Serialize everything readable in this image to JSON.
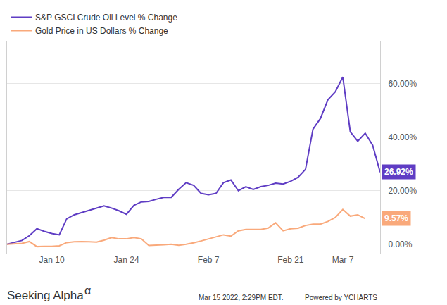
{
  "chart_data": {
    "type": "line",
    "categories": [
      null,
      null,
      null,
      null,
      null,
      null,
      "Jan 10",
      null,
      null,
      null,
      null,
      null,
      null,
      null,
      null,
      null,
      "Jan 24",
      null,
      null,
      null,
      null,
      null,
      null,
      null,
      null,
      null,
      null,
      "Feb 7",
      null,
      null,
      null,
      null,
      null,
      null,
      null,
      null,
      null,
      null,
      "Feb 21",
      null,
      null,
      null,
      null,
      null,
      null,
      "Mar 7",
      null,
      null,
      null,
      null,
      null
    ],
    "series": [
      {
        "name": "S&P GSCI Crude Oil Level % Change",
        "color": "#5f3dc4",
        "values": [
          0,
          0.7,
          1.4,
          3.2,
          5.8,
          4.8,
          4,
          3.5,
          9.5,
          11,
          11.8,
          12.5,
          13.5,
          14.3,
          13.5,
          12.5,
          11.2,
          14.5,
          15.8,
          16,
          16.8,
          17.5,
          17.5,
          20.5,
          23,
          22,
          19,
          18.5,
          19,
          23,
          24,
          20,
          21.5,
          20.5,
          21.5,
          22,
          22.8,
          22.5,
          23.5,
          25,
          28,
          43,
          47,
          54,
          57,
          62.5,
          42,
          38.5,
          41.5,
          37,
          26.92
        ],
        "value_labels": [
          null,
          null,
          null,
          null,
          null,
          null,
          null,
          null,
          null,
          null,
          null,
          null,
          null,
          null,
          null,
          null,
          null,
          null,
          null,
          null,
          null,
          null,
          null,
          null,
          null,
          null,
          null,
          null,
          null,
          null,
          null,
          null,
          null,
          null,
          null,
          null,
          null,
          null,
          null,
          null,
          null,
          null,
          null,
          null,
          null,
          null,
          null,
          null,
          null,
          null,
          "26.92%"
        ]
      },
      {
        "name": "Gold Price in US Dollars % Change",
        "color": "#f9a97b",
        "values": [
          0,
          0.1,
          0.3,
          1,
          -0.9,
          -0.8,
          -0.8,
          -0.6,
          0.6,
          0.9,
          1,
          0.9,
          0.8,
          1.5,
          2.5,
          2,
          2,
          2.5,
          2,
          -0.5,
          -0.4,
          -0.2,
          0,
          -0.4,
          0,
          0.5,
          1.2,
          2,
          2.8,
          3.5,
          3,
          5,
          5.5,
          5.5,
          5.5,
          6,
          8,
          5,
          5.8,
          6,
          7,
          7.5,
          7.5,
          8.5,
          10,
          13,
          10.5,
          11,
          9.57,
          null,
          null
        ],
        "value_labels": [
          null,
          null,
          null,
          null,
          null,
          null,
          null,
          null,
          null,
          null,
          null,
          null,
          null,
          null,
          null,
          null,
          null,
          null,
          null,
          null,
          null,
          null,
          null,
          null,
          null,
          null,
          null,
          null,
          null,
          null,
          null,
          null,
          null,
          null,
          null,
          null,
          null,
          null,
          null,
          null,
          null,
          null,
          null,
          null,
          null,
          null,
          null,
          null,
          "9.57%",
          null,
          null
        ]
      }
    ],
    "ylim": [
      -3.5,
      76
    ],
    "yticks": [
      {
        "value": 0,
        "label": "0.00%"
      },
      {
        "value": 20,
        "label": "20.00%"
      },
      {
        "value": 40,
        "label": "40.00%"
      },
      {
        "value": 60,
        "label": "60.00%"
      }
    ],
    "grid": true,
    "legend": "top-left",
    "annotations": [
      "Seeking Alpha",
      "α",
      "Mar 15 2022, 2:29PM EDT.",
      "Powered by YCHARTS"
    ]
  }
}
